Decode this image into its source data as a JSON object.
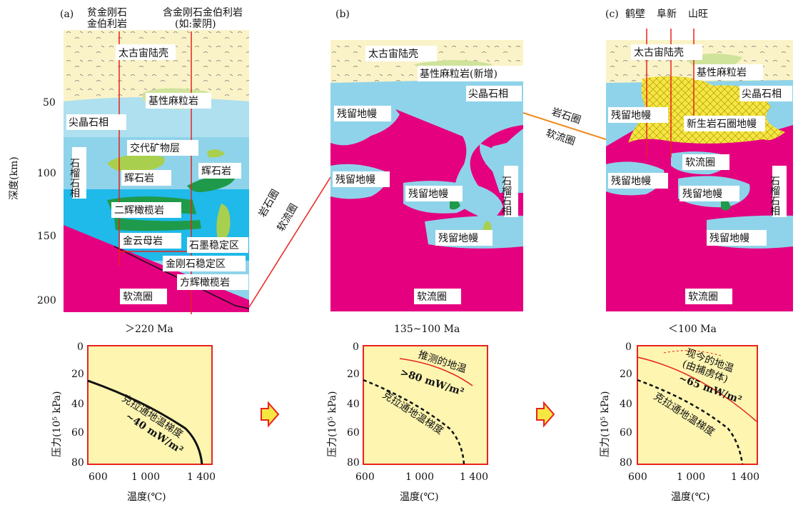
{
  "panels": [
    {
      "tag": "(a)",
      "time": "＞220 Ma",
      "top_labels": {
        "left": [
          "贫金刚石",
          "金伯利岩"
        ],
        "right": [
          "含金刚石金伯利岩",
          "(如:蒙阴)"
        ]
      },
      "labels": {
        "crust": "太古宙陆壳",
        "granulite": "基性麻粒岩",
        "spinel": "尖晶石相",
        "garnet": "石榴石相",
        "metasomatic": "交代矿物层",
        "pyroxenite1": "辉石岩",
        "pyroxenite2": "辉石岩",
        "harzburgite": "二辉橄榄岩",
        "phlogopite": "金云母岩",
        "graphite": "石墨稳定区",
        "diamond": "金刚石稳定区",
        "olivine": "方辉橄榄岩",
        "astheno": "软流圈"
      }
    },
    {
      "tag": "(b)",
      "time": "135~100 Ma",
      "labels": {
        "crust": "太古宙陆壳",
        "granulite": "基性麻粒岩(新增)",
        "spinel": "尖晶石相",
        "relic1": "残留地幔",
        "relic2": "残留地幔",
        "relic3": "残留地幔",
        "relic4": "残留地幔",
        "garnet": "石榴石相",
        "astheno": "软流圈"
      }
    },
    {
      "tag": "(c)",
      "time": "＜100 Ma",
      "top_labels": [
        "鹤壁",
        "阜新",
        "山旺"
      ],
      "labels": {
        "crust": "太古宙陆壳",
        "granulite": "基性麻粒岩",
        "spinel": "尖晶石相",
        "relic1": "残留地幔",
        "new_litho": "新生岩石圈地幔",
        "astheno1": "软流圈",
        "relic2": "残留地幔",
        "relic3": "残留地幔",
        "relic4": "残留地幔",
        "garnet": "石榴石相",
        "astheno2": "软流圈"
      }
    }
  ],
  "depth_axis": {
    "label": "深度(km)",
    "ticks": [
      "50",
      "100",
      "150",
      "200"
    ]
  },
  "boundary_labels": {
    "litho": "岩石圈",
    "astheno": "软流圈"
  },
  "geotherm": {
    "ylabel": "压力(10⁵ kPa)",
    "xlabel": "温度(℃)",
    "xticks": [
      "600",
      "1 000",
      "1 400"
    ],
    "yticks": [
      "0",
      "20",
      "40",
      "60",
      "80"
    ],
    "panels": [
      {
        "curve_label": "克拉通地温梯度",
        "value_label": "~40 mW/m²"
      },
      {
        "curve_label": "克拉通地温梯度",
        "value_label": ">80 mW/m²",
        "inferred": "推测的地温"
      },
      {
        "curve_label": "克拉通地温梯度",
        "value_label": "~65 mW/m²",
        "present": "现今的地温",
        "present2": "(由捕虏体)"
      }
    ]
  },
  "colors": {
    "crust": "#fbf3c8",
    "granulite": "#cfe39a",
    "spinel_light": "#aee0ef",
    "spinel": "#8fd3ea",
    "garnet": "#1fb9ea",
    "magenta": "#e4007f",
    "green": "#1f9a4a",
    "lime": "#a9cf4e",
    "yellow": "#f5e642",
    "plot_bg": "#fdf5b0",
    "red": "#e8231e",
    "orange": "#f08a1e"
  }
}
